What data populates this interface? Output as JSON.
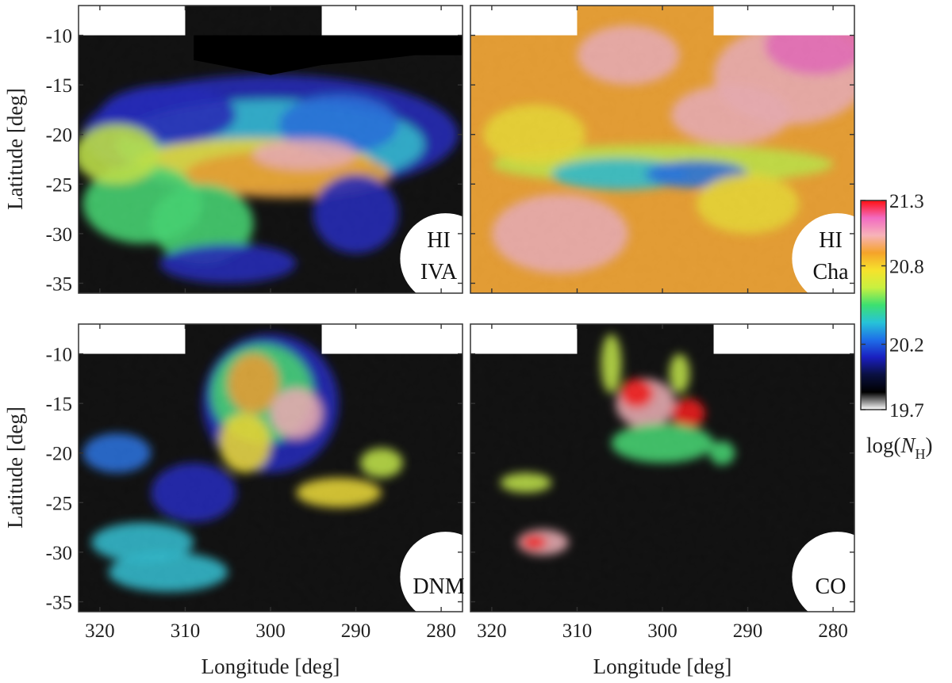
{
  "chart_data": {
    "type": "heatmap",
    "layout": "2x2 panels, shared axes",
    "xlabel": "Longitude [deg]",
    "ylabel": "Latitude [deg]",
    "xlim": [
      322.5,
      277.5
    ],
    "ylim": [
      -36,
      -7
    ],
    "x_inverted": true,
    "xticks": [
      320,
      310,
      300,
      290,
      280
    ],
    "yticks": [
      -10,
      -15,
      -20,
      -25,
      -30,
      -35
    ],
    "colorbar": {
      "label_prefix": "log(",
      "label_var": "N",
      "label_sub": "H",
      "label_suffix": ")",
      "ticks": [
        21.3,
        20.8,
        20.2,
        19.7
      ],
      "range": [
        19.7,
        21.3
      ],
      "colormap": [
        "#ffffff",
        "#000000",
        "#0a1040",
        "#1a1fc0",
        "#1e6ee8",
        "#27c3d8",
        "#3de070",
        "#c8f040",
        "#f6e22c",
        "#f5a32a",
        "#f7b3b9",
        "#f26bc1",
        "#ff1010"
      ]
    },
    "panels": [
      {
        "label_lines": [
          "HI",
          "IVA"
        ],
        "mean_level": "low-mid",
        "features": "filamentary band along latitude -22 to -26"
      },
      {
        "label_lines": [
          "HI",
          "Cha"
        ],
        "mean_level": "high",
        "features": "widespread emission, lower values in band near latitude -23"
      },
      {
        "label_lines": [
          "DNM"
        ],
        "mean_level": "low",
        "features": "clumpy emission around longitude 295-305, latitude -10 to -25"
      },
      {
        "label_lines": [
          "CO"
        ],
        "mean_level": "very low",
        "features": "compact peaks near (303,-14), (297,-16), (314,-29)"
      }
    ],
    "masked_region": "white areas outside survey footprint: top-left and top-right above latitude -10, circular region lower-right"
  }
}
